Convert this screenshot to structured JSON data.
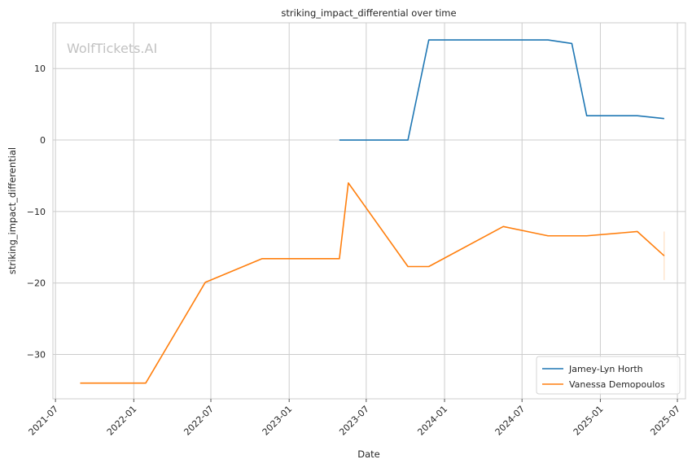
{
  "chart_data": {
    "type": "line",
    "title": "striking_impact_differential over time",
    "xlabel": "Date",
    "ylabel": "striking_impact_differential",
    "watermark": "WolfTickets.AI",
    "x_ticks": [
      "2021-07",
      "2022-01",
      "2022-07",
      "2023-01",
      "2023-07",
      "2024-01",
      "2024-07",
      "2025-01",
      "2025-07"
    ],
    "y_ticks": [
      10,
      0,
      -10,
      -20,
      -30
    ],
    "y_tick_labels": [
      "10",
      "0",
      "−10",
      "−20",
      "−30"
    ],
    "xlim": [
      "2021-06-25",
      "2025-07-20"
    ],
    "ylim": [
      -36.2,
      16.4
    ],
    "grid": true,
    "legend_position": "lower-right",
    "series": [
      {
        "name": "Jamey-Lyn Horth",
        "color": "#1f77b4",
        "points": [
          {
            "x": "2023-04-29",
            "y": 0.0
          },
          {
            "x": "2023-10-07",
            "y": 0.0
          },
          {
            "x": "2023-11-25",
            "y": 14.0
          },
          {
            "x": "2024-08-31",
            "y": 14.0
          },
          {
            "x": "2024-10-26",
            "y": 13.5
          },
          {
            "x": "2024-11-30",
            "y": 3.4
          },
          {
            "x": "2025-03-29",
            "y": 3.4
          },
          {
            "x": "2025-05-31",
            "y": 3.0
          }
        ]
      },
      {
        "name": "Vanessa Demopoulos",
        "color": "#ff7f0e",
        "points": [
          {
            "x": "2021-08-28",
            "y": -34.0
          },
          {
            "x": "2022-01-29",
            "y": -34.0
          },
          {
            "x": "2022-06-18",
            "y": -19.9
          },
          {
            "x": "2022-10-29",
            "y": -16.6
          },
          {
            "x": "2023-04-29",
            "y": -16.6
          },
          {
            "x": "2023-05-20",
            "y": -6.0
          },
          {
            "x": "2023-10-07",
            "y": -17.7
          },
          {
            "x": "2023-11-25",
            "y": -17.7
          },
          {
            "x": "2024-05-18",
            "y": -12.1
          },
          {
            "x": "2024-08-31",
            "y": -13.4
          },
          {
            "x": "2024-11-30",
            "y": -13.4
          },
          {
            "x": "2025-03-29",
            "y": -12.8
          },
          {
            "x": "2025-05-31",
            "y": -16.2
          }
        ],
        "error_bar": {
          "x": "2025-05-31",
          "low": -19.6,
          "high": -12.8
        }
      }
    ]
  }
}
